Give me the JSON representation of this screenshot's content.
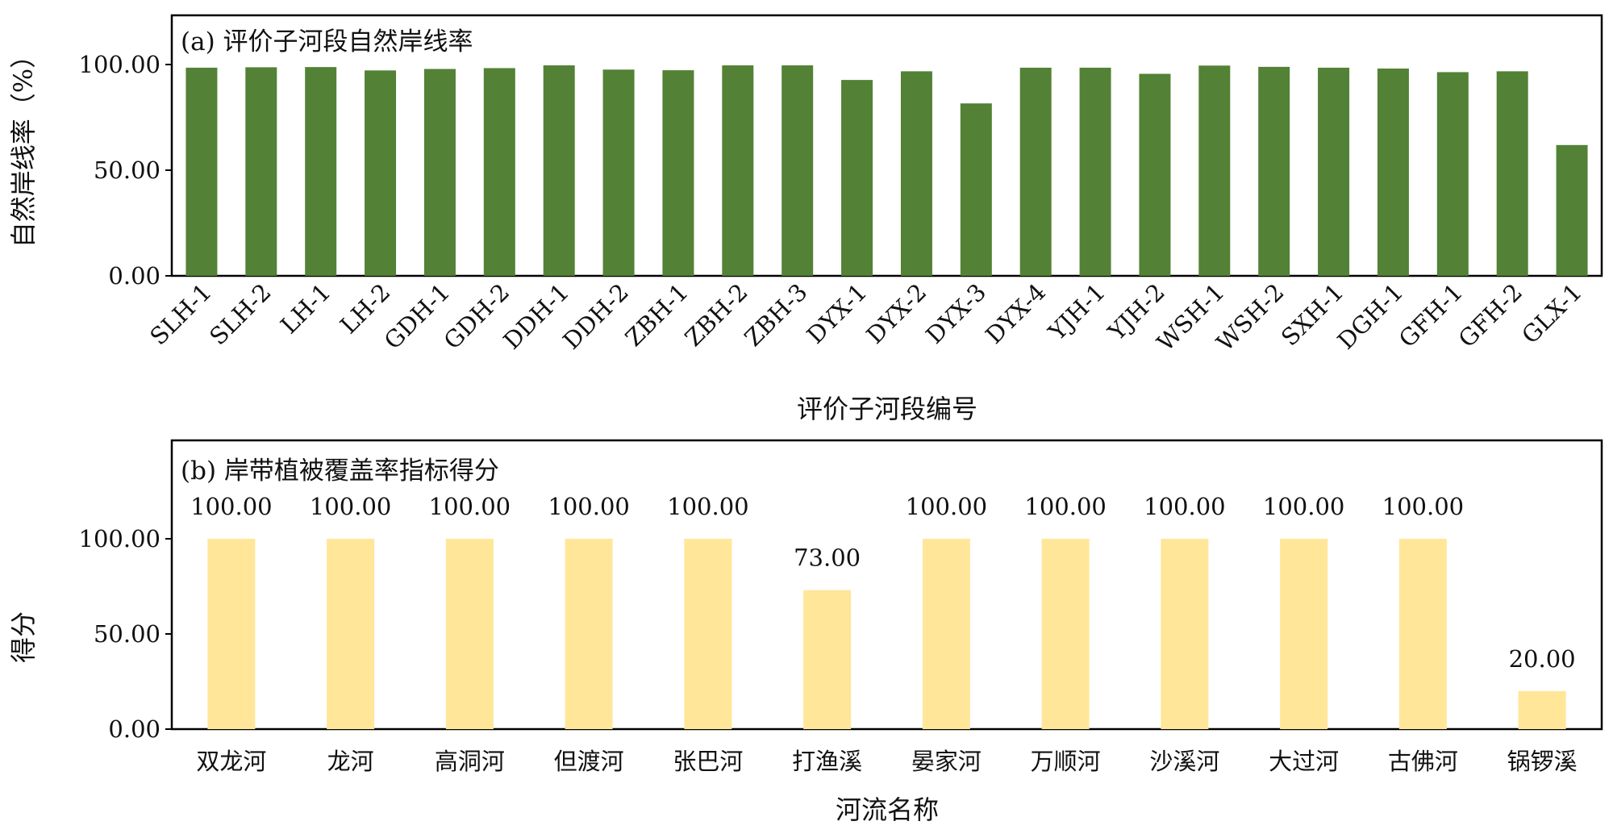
{
  "chart_data": [
    {
      "type": "bar",
      "title": "(a) 评价子河段自然岸线率",
      "xlabel": "评价子河段编号",
      "ylabel": "自然岸线率（%）",
      "ylim": [
        0,
        100
      ],
      "yticks": [
        "0.00",
        "50.00",
        "100.00"
      ],
      "color": "#538135",
      "categories": [
        "SLH-1",
        "SLH-2",
        "LH-1",
        "LH-2",
        "GDH-1",
        "GDH-2",
        "DDH-1",
        "DDH-2",
        "ZBH-1",
        "ZBH-2",
        "ZBH-3",
        "DYX-1",
        "DYX-2",
        "DYX-3",
        "DYX-4",
        "YJH-1",
        "YJH-2",
        "WSH-1",
        "WSH-2",
        "SXH-1",
        "DGH-1",
        "GFH-1",
        "GFH-2",
        "GLX-1"
      ],
      "values": [
        98.5,
        98.7,
        98.8,
        97.2,
        97.9,
        98.3,
        99.6,
        97.6,
        97.3,
        99.6,
        99.6,
        92.7,
        96.8,
        81.6,
        98.5,
        98.5,
        95.6,
        99.5,
        98.9,
        98.5,
        98.1,
        96.4,
        96.8,
        61.9
      ],
      "grid": false,
      "legend": "none"
    },
    {
      "type": "bar",
      "title": "(b) 岸带植被覆盖率指标得分",
      "xlabel": "河流名称",
      "ylabel": "得分",
      "ylim": [
        0,
        100
      ],
      "yticks": [
        "0.00",
        "50.00",
        "100.00"
      ],
      "color": "#FFE699",
      "categories": [
        "双龙河",
        "龙河",
        "高洞河",
        "但渡河",
        "张巴河",
        "打渔溪",
        "晏家河",
        "万顺河",
        "沙溪河",
        "大过河",
        "古佛河",
        "锅锣溪"
      ],
      "values": [
        100,
        100,
        100,
        100,
        100,
        73,
        100,
        100,
        100,
        100,
        100,
        20
      ],
      "data_labels": [
        "100.00",
        "100.00",
        "100.00",
        "100.00",
        "100.00",
        "73.00",
        "100.00",
        "100.00",
        "100.00",
        "100.00",
        "100.00",
        "20.00"
      ],
      "grid": false,
      "legend": "none"
    }
  ]
}
